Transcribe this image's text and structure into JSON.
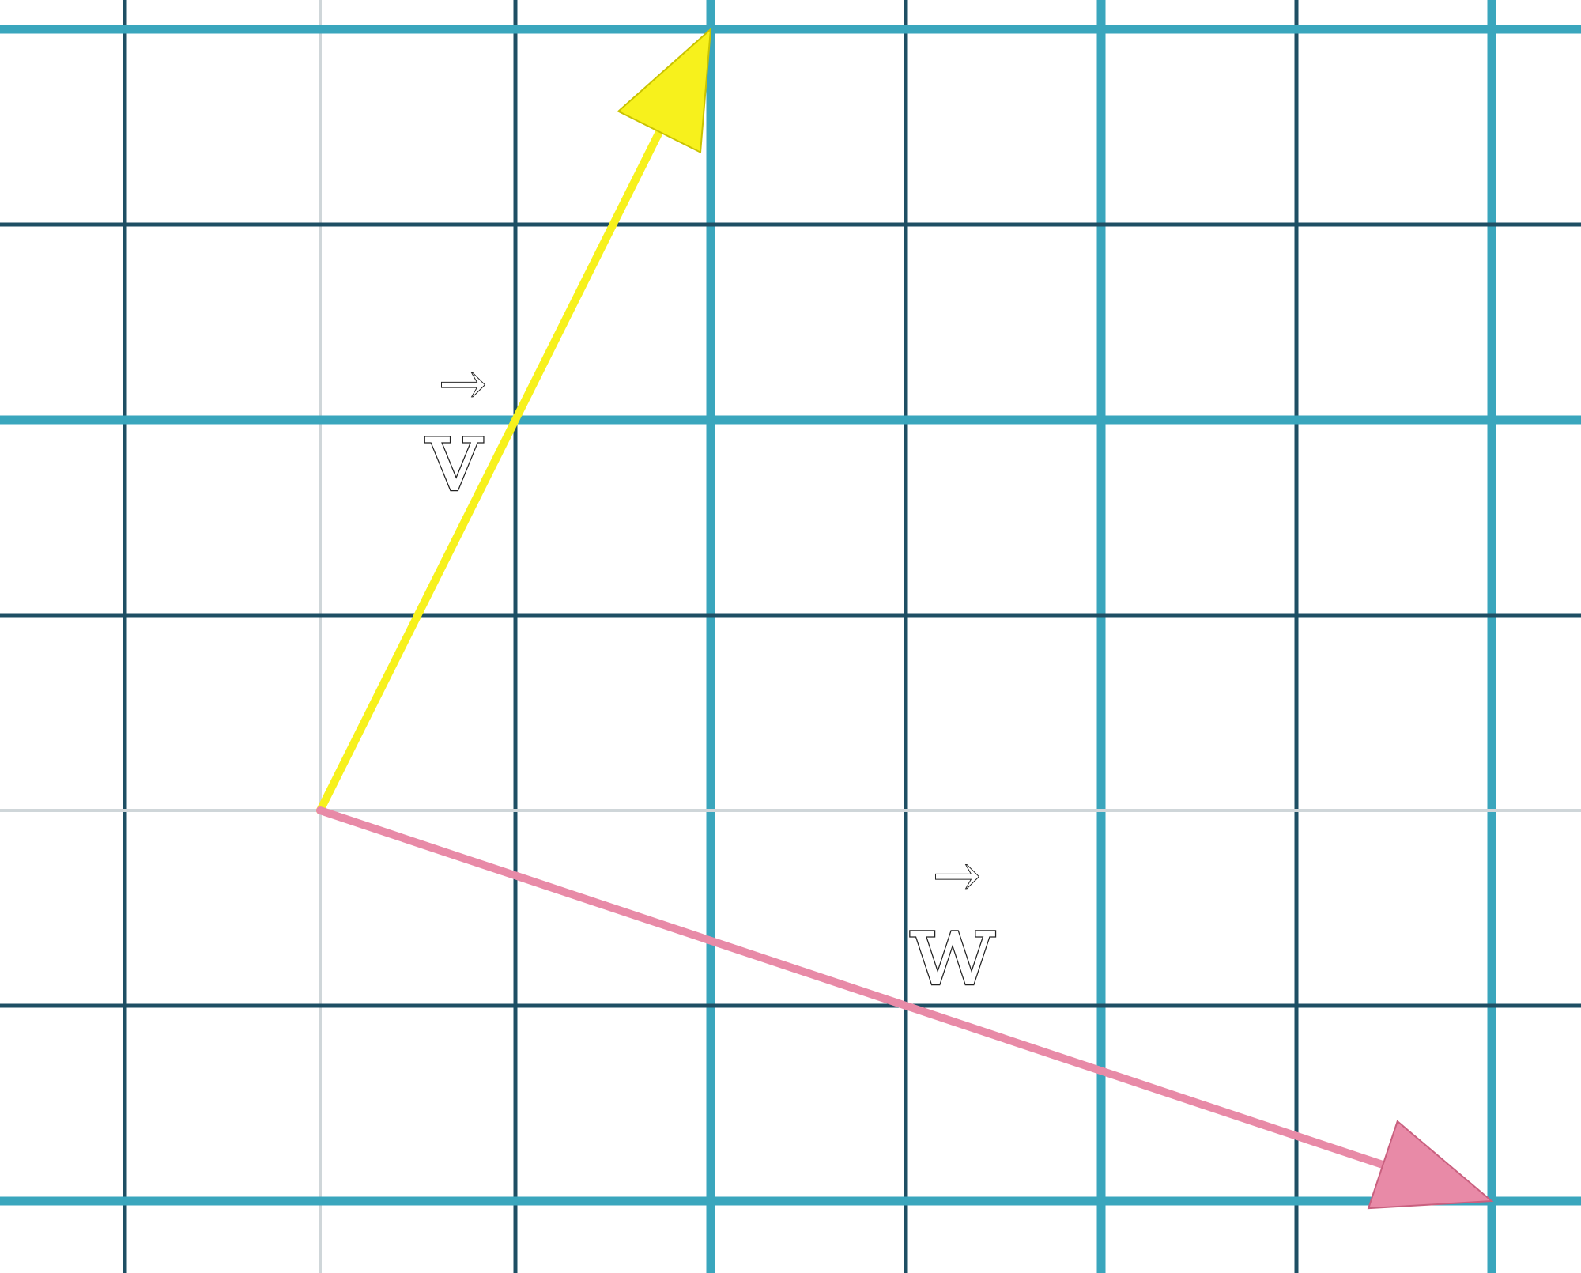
{
  "diagram": {
    "grid": {
      "x_range": [
        -1,
        6
      ],
      "y_range": [
        -2,
        4
      ],
      "major_every": 2,
      "colors": {
        "background": "#ffffff",
        "minor_line": "#1e4f64",
        "major_line": "#3aa6bd",
        "axis_line": "#cfd6d9"
      }
    },
    "vectors": [
      {
        "id": "v",
        "label": "v",
        "label_accent": "→",
        "components": [
          2,
          4
        ],
        "color": "#f7f11c",
        "outline": "#c9c300"
      },
      {
        "id": "w",
        "label": "w",
        "label_accent": "→",
        "components": [
          6,
          -2
        ],
        "color": "#e88aa7",
        "outline": "#c9607f"
      }
    ]
  }
}
